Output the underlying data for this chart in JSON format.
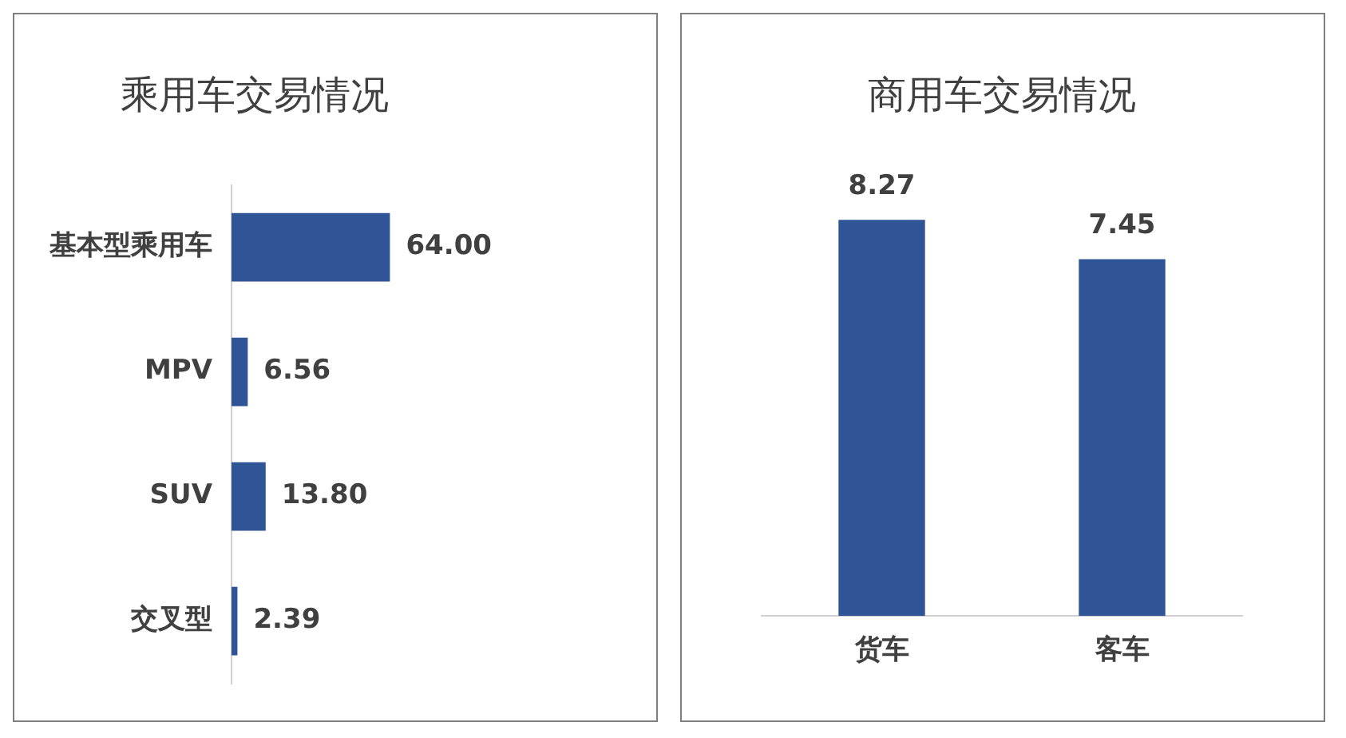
{
  "chart_data": [
    {
      "type": "bar",
      "title": "乘用车交易情况",
      "orientation": "horizontal",
      "categories": [
        "基本型乘用车",
        "MPV",
        "SUV",
        "交叉型"
      ],
      "values": [
        64.0,
        6.56,
        13.8,
        2.39
      ],
      "value_labels": [
        "64.00",
        "6.56",
        "13.80",
        "2.39"
      ],
      "color": "#2f5597",
      "tick_labels": "y"
    },
    {
      "type": "bar",
      "title": "商用车交易情况",
      "categories": [
        "货车",
        "客车"
      ],
      "values": [
        8.27,
        7.45
      ],
      "value_labels": [
        "8.27",
        "7.45"
      ],
      "color": "#2f5597",
      "tick_labels": "x"
    }
  ]
}
